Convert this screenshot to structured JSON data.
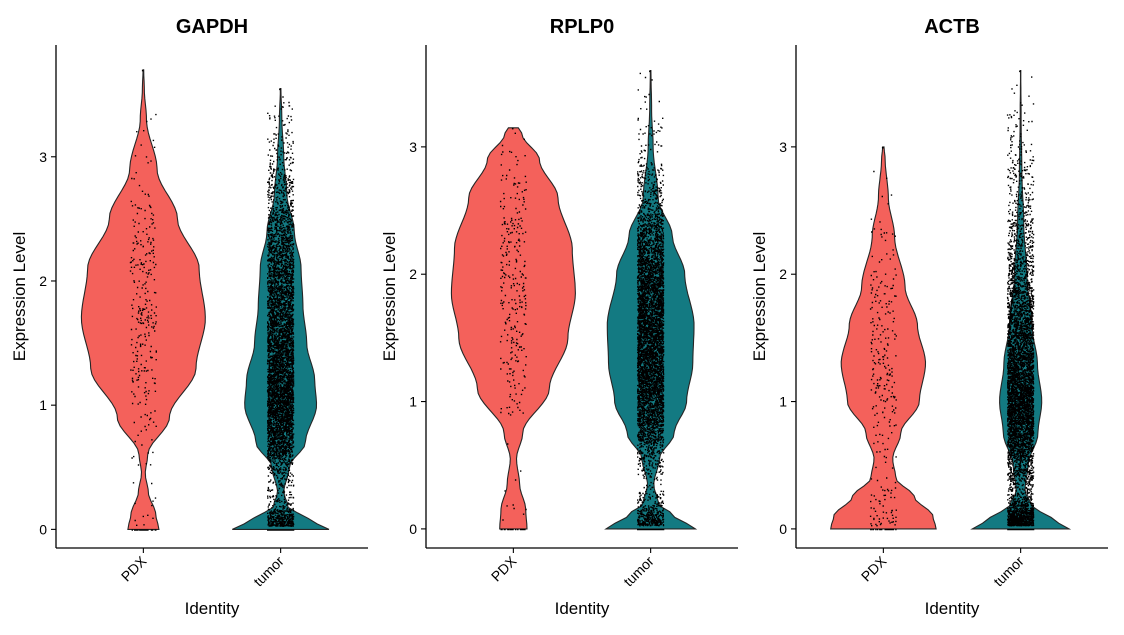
{
  "colors": {
    "PDX": "#F4615B",
    "tumor": "#137A82",
    "points": "#000000"
  },
  "chart_data": [
    {
      "type": "violin",
      "title": "GAPDH",
      "xlabel": "Identity",
      "ylabel": "Expression Level",
      "categories": [
        "PDX",
        "tumor"
      ],
      "yticks": [
        0,
        1,
        2,
        3
      ],
      "ylim": [
        -0.15,
        3.9
      ],
      "groups": [
        {
          "name": "PDX",
          "ymax": 3.7,
          "dots": 320,
          "zero_fraction": 0.08,
          "profile": [
            [
              0,
              0.25
            ],
            [
              0.12,
              0.2
            ],
            [
              0.3,
              0.08
            ],
            [
              0.45,
              0.03
            ],
            [
              0.6,
              0.07
            ],
            [
              0.9,
              0.42
            ],
            [
              1.3,
              0.85
            ],
            [
              1.7,
              1.0
            ],
            [
              2.1,
              0.9
            ],
            [
              2.5,
              0.55
            ],
            [
              2.9,
              0.22
            ],
            [
              3.3,
              0.05
            ],
            [
              3.55,
              0.015
            ],
            [
              3.7,
              0.005
            ]
          ]
        },
        {
          "name": "tumor",
          "ymax": 3.55,
          "dots": 6000,
          "zero_fraction": 0.06,
          "profile": [
            [
              0,
              0.78
            ],
            [
              0.08,
              0.45
            ],
            [
              0.18,
              0.12
            ],
            [
              0.3,
              0.05
            ],
            [
              0.5,
              0.14
            ],
            [
              0.7,
              0.4
            ],
            [
              1.0,
              0.58
            ],
            [
              1.2,
              0.55
            ],
            [
              1.5,
              0.42
            ],
            [
              1.8,
              0.36
            ],
            [
              2.1,
              0.33
            ],
            [
              2.4,
              0.22
            ],
            [
              2.7,
              0.1
            ],
            [
              3.0,
              0.05
            ],
            [
              3.3,
              0.02
            ],
            [
              3.55,
              0.005
            ]
          ]
        }
      ]
    },
    {
      "type": "violin",
      "title": "RPLP0",
      "xlabel": "Identity",
      "ylabel": "Expression Level",
      "categories": [
        "PDX",
        "tumor"
      ],
      "yticks": [
        0,
        1,
        2,
        3
      ],
      "ylim": [
        -0.15,
        3.8
      ],
      "groups": [
        {
          "name": "PDX",
          "ymax": 3.15,
          "dots": 320,
          "zero_fraction": 0.08,
          "profile": [
            [
              0,
              0.22
            ],
            [
              0.15,
              0.2
            ],
            [
              0.35,
              0.1
            ],
            [
              0.55,
              0.05
            ],
            [
              0.75,
              0.15
            ],
            [
              1.1,
              0.58
            ],
            [
              1.5,
              0.88
            ],
            [
              1.85,
              1.0
            ],
            [
              2.2,
              0.95
            ],
            [
              2.6,
              0.72
            ],
            [
              2.9,
              0.42
            ],
            [
              3.1,
              0.14
            ],
            [
              3.15,
              0.08
            ]
          ]
        },
        {
          "name": "tumor",
          "ymax": 3.6,
          "dots": 6000,
          "zero_fraction": 0.06,
          "profile": [
            [
              0,
              0.72
            ],
            [
              0.1,
              0.38
            ],
            [
              0.2,
              0.12
            ],
            [
              0.35,
              0.05
            ],
            [
              0.55,
              0.14
            ],
            [
              0.75,
              0.38
            ],
            [
              1.0,
              0.58
            ],
            [
              1.3,
              0.68
            ],
            [
              1.6,
              0.7
            ],
            [
              2.0,
              0.55
            ],
            [
              2.3,
              0.35
            ],
            [
              2.6,
              0.12
            ],
            [
              3.0,
              0.04
            ],
            [
              3.3,
              0.015
            ],
            [
              3.6,
              0.005
            ]
          ]
        }
      ]
    },
    {
      "type": "violin",
      "title": "ACTB",
      "xlabel": "Identity",
      "ylabel": "Expression Level",
      "categories": [
        "PDX",
        "tumor"
      ],
      "yticks": [
        0,
        1,
        2,
        3
      ],
      "ylim": [
        -0.15,
        3.8
      ],
      "groups": [
        {
          "name": "PDX",
          "ymax": 3.0,
          "dots": 300,
          "zero_fraction": 0.08,
          "profile": [
            [
              0,
              0.85
            ],
            [
              0.1,
              0.8
            ],
            [
              0.25,
              0.5
            ],
            [
              0.4,
              0.2
            ],
            [
              0.55,
              0.15
            ],
            [
              0.75,
              0.28
            ],
            [
              1.0,
              0.58
            ],
            [
              1.3,
              0.68
            ],
            [
              1.6,
              0.55
            ],
            [
              1.9,
              0.35
            ],
            [
              2.3,
              0.18
            ],
            [
              2.6,
              0.08
            ],
            [
              2.9,
              0.03
            ],
            [
              3.0,
              0.01
            ]
          ]
        },
        {
          "name": "tumor",
          "ymax": 3.6,
          "dots": 6000,
          "zero_fraction": 0.06,
          "profile": [
            [
              0,
              0.78
            ],
            [
              0.08,
              0.5
            ],
            [
              0.18,
              0.18
            ],
            [
              0.3,
              0.07
            ],
            [
              0.5,
              0.12
            ],
            [
              0.75,
              0.28
            ],
            [
              1.0,
              0.34
            ],
            [
              1.3,
              0.27
            ],
            [
              1.6,
              0.18
            ],
            [
              2.0,
              0.1
            ],
            [
              2.4,
              0.05
            ],
            [
              2.8,
              0.02
            ],
            [
              3.2,
              0.008
            ],
            [
              3.6,
              0.002
            ]
          ]
        }
      ]
    }
  ]
}
